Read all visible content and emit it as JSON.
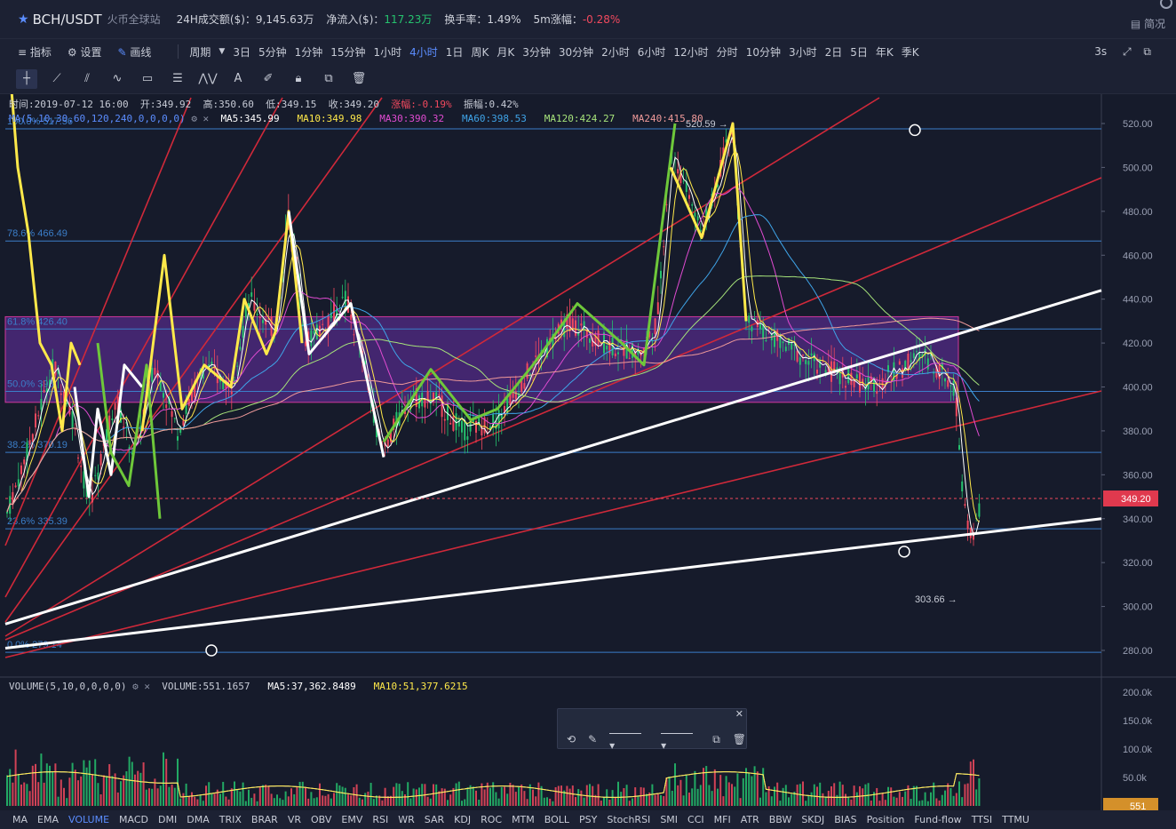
{
  "header": {
    "pair": "BCH/USDT",
    "exchange": "火币全球站",
    "volume_label": "24H成交额($)：",
    "volume_value": "9,145.63万",
    "inflow_label": "净流入($)：",
    "inflow_value": "117.23万",
    "turnover_label": "换手率：",
    "turnover_value": "1.49%",
    "change_label": "5m涨幅：",
    "change_value": "-0.28%",
    "simplified": "简况"
  },
  "toolbar": {
    "indicator": "指标",
    "settings": "设置",
    "draw": "画线",
    "period_label": "周期",
    "periods": [
      "3日",
      "5分钟",
      "1分钟",
      "15分钟",
      "1小时",
      "4小时",
      "1日",
      "周K",
      "月K",
      "3分钟",
      "30分钟",
      "2小时",
      "6小时",
      "12小时",
      "分时",
      "10分钟",
      "3小时",
      "2日",
      "5日",
      "年K",
      "季K"
    ],
    "active_period": "4小时",
    "refresh": "3s"
  },
  "ohlc": {
    "time": "时间:2019-07-12 16:00",
    "open": "开:349.92",
    "high": "高:350.60",
    "low": "低:349.15",
    "close": "收:349.20",
    "change": "涨幅:-0.19%",
    "amplitude": "振幅:0.42%"
  },
  "ma": {
    "params": "MA(5,10,30,60,120,240,0,0,0,0)",
    "ma5": "MA5:345.99",
    "ma10": "MA10:349.98",
    "ma30": "MA30:390.32",
    "ma60": "MA60:398.53",
    "ma120": "MA120:424.27",
    "ma240": "MA240:415.80"
  },
  "colors": {
    "ma5": "#ffffff",
    "ma10": "#ffe94a",
    "ma30": "#e04bd1",
    "ma60": "#3fa4e8",
    "ma120": "#a6e37a",
    "ma240": "#f09a9a",
    "up": "#25c26e",
    "down": "#f2495e",
    "fib": "#3b7ec9",
    "zone": "#6a2fa8",
    "accent": "#5b8dff"
  },
  "price_axis": [
    "520.00",
    "500.00",
    "480.00",
    "460.00",
    "440.00",
    "420.00",
    "400.00",
    "380.00",
    "360.00",
    "340.00",
    "320.00",
    "300.00",
    "280.00"
  ],
  "current_price": "349.20",
  "fib_levels": [
    "100.0% 517.56",
    "78.6% 466.49",
    "61.8% 426.40",
    "50.0% 398",
    "38.2% 370.19",
    "23.6% 335.39",
    "0.0% 279.14"
  ],
  "annotations": {
    "high": "520.59 →",
    "low": "303.66 →"
  },
  "volume": {
    "params": "VOLUME(5,10,0,0,0,0)",
    "volume": "VOLUME:551.1657",
    "ma5": "MA5:37,362.8489",
    "ma10": "MA10:51,377.6215",
    "axis": [
      "200.0k",
      "150.0k",
      "100.0k",
      "50.0k"
    ],
    "current": "551"
  },
  "indicators": [
    "MA",
    "EMA",
    "VOLUME",
    "MACD",
    "DMI",
    "DMA",
    "TRIX",
    "BRAR",
    "VR",
    "OBV",
    "EMV",
    "RSI",
    "WR",
    "SAR",
    "KDJ",
    "ROC",
    "MTM",
    "BOLL",
    "PSY",
    "StochRSI",
    "SMI",
    "CCI",
    "MFI",
    "ATR",
    "BBW",
    "SKDJ",
    "BIAS",
    "Position",
    "Fund-flow",
    "TTSI",
    "TTMU"
  ],
  "active_indicator": "VOLUME"
}
